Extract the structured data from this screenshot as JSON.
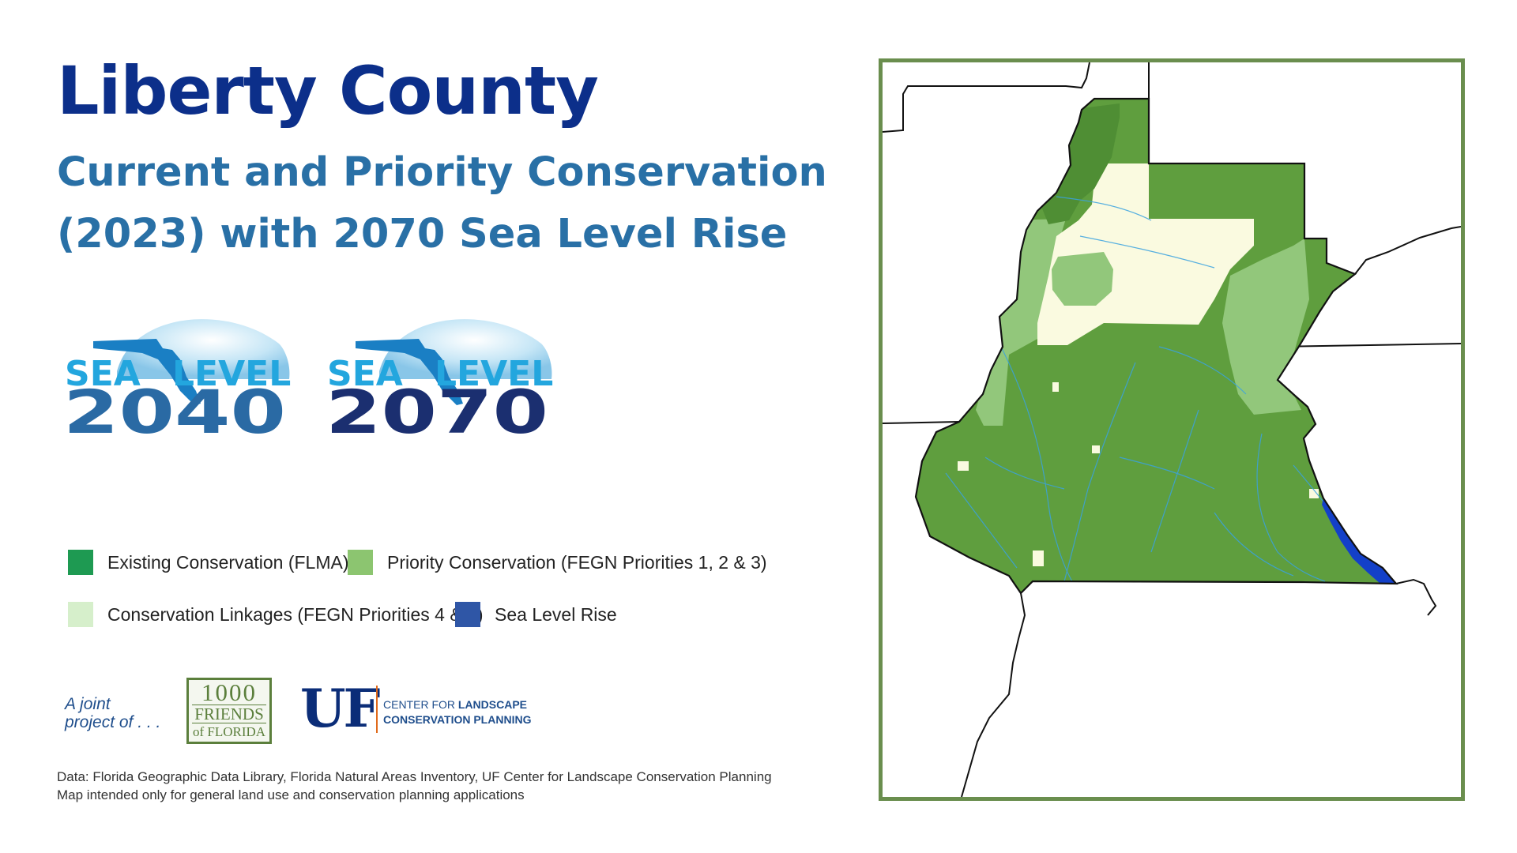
{
  "header": {
    "title": "Liberty County",
    "subtitle_line1": "Current and Priority Conservation",
    "subtitle_line2": "(2023) with 2070 Sea Level Rise"
  },
  "logos": [
    {
      "word1": "SEA",
      "word2": "LEVEL",
      "year": "2040",
      "year_color": "#2a6aa4"
    },
    {
      "word1": "SEA",
      "word2": "LEVEL",
      "year": "2070",
      "year_color": "#1b2f70"
    }
  ],
  "legend": [
    {
      "label": "Existing Conservation (FLMA)",
      "color": "#1e9a52"
    },
    {
      "label": "Priority Conservation (FEGN Priorities 1, 2 & 3)",
      "color": "#8cc570"
    },
    {
      "label": "Conservation Linkages (FEGN Priorities 4 & 5)",
      "color": "#d6efcb"
    },
    {
      "label": "Sea Level Rise",
      "color": "#2f56a6"
    }
  ],
  "partners": {
    "intro_line1": "A joint",
    "intro_line2": "project of . . .",
    "friends_line1": "1000",
    "friends_line2": "FRIENDS",
    "friends_line3": "of FLORIDA",
    "uf_mark": "UF",
    "uf_text_line1_a": "CENTER FOR ",
    "uf_text_line1_b": "LANDSCAPE",
    "uf_text_line2": "CONSERVATION PLANNING"
  },
  "credits": {
    "line1": "Data: Florida Geographic Data Library, Florida Natural Areas Inventory, UF Center for Landscape Conservation Planning",
    "line2": "Map intended only for general land use and conservation planning applications"
  },
  "map": {
    "colors": {
      "existing": "#5f9e3e",
      "priority": "#92c77b",
      "linkage": "#fafae0",
      "water": "#3aa2e0",
      "sea_level_rise": "#1340c8",
      "frame": "#6a8e4e"
    }
  }
}
